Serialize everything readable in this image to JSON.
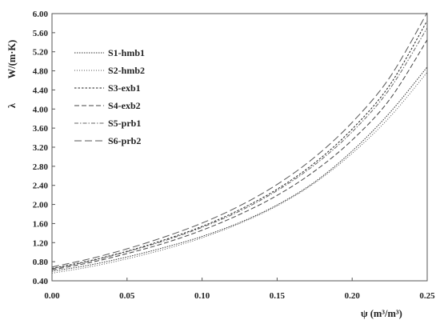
{
  "chart_data": {
    "type": "line",
    "xlabel": "ψ (m³/m³)",
    "ylabel_symbol": "λ",
    "ylabel_unit": "W/(m·K)",
    "xlim": [
      0.0,
      0.25
    ],
    "ylim": [
      0.4,
      6.0
    ],
    "x_ticks": [
      "0.00",
      "0.05",
      "0.10",
      "0.15",
      "0.20",
      "0.25"
    ],
    "y_ticks": [
      "0.40",
      "0.80",
      "1.20",
      "1.60",
      "2.00",
      "2.40",
      "2.80",
      "3.20",
      "3.60",
      "4.00",
      "4.40",
      "4.80",
      "5.20",
      "5.60",
      "6.00"
    ],
    "grid": false,
    "legend_position": "top-left",
    "x": [
      0.0,
      0.025,
      0.05,
      0.075,
      0.1,
      0.125,
      0.15,
      0.175,
      0.2,
      0.225,
      0.25
    ],
    "series": [
      {
        "name": "S1-hmb1",
        "dash": "dotted",
        "values": [
          0.6,
          0.73,
          0.9,
          1.1,
          1.33,
          1.62,
          1.99,
          2.47,
          3.12,
          3.92,
          4.88
        ]
      },
      {
        "name": "S2-hmb2",
        "dash": "fine-dotted",
        "values": [
          0.56,
          0.69,
          0.86,
          1.06,
          1.3,
          1.6,
          1.97,
          2.45,
          3.07,
          3.83,
          4.77
        ]
      },
      {
        "name": "S3-exb1",
        "dash": "short-dash",
        "values": [
          0.66,
          0.82,
          1.02,
          1.26,
          1.54,
          1.89,
          2.32,
          2.87,
          3.58,
          4.5,
          5.85
        ]
      },
      {
        "name": "S4-exb2",
        "dash": "dash",
        "values": [
          0.63,
          0.78,
          0.97,
          1.19,
          1.46,
          1.79,
          2.19,
          2.7,
          3.35,
          4.2,
          5.45
        ]
      },
      {
        "name": "S5-prb1",
        "dash": "dash-dot",
        "values": [
          0.65,
          0.81,
          1.01,
          1.24,
          1.52,
          1.86,
          2.29,
          2.83,
          3.52,
          4.42,
          5.7
        ]
      },
      {
        "name": "S6-prb2",
        "dash": "long-dash",
        "values": [
          0.69,
          0.86,
          1.07,
          1.32,
          1.61,
          1.97,
          2.42,
          2.99,
          3.72,
          4.66,
          6.02
        ]
      }
    ]
  }
}
